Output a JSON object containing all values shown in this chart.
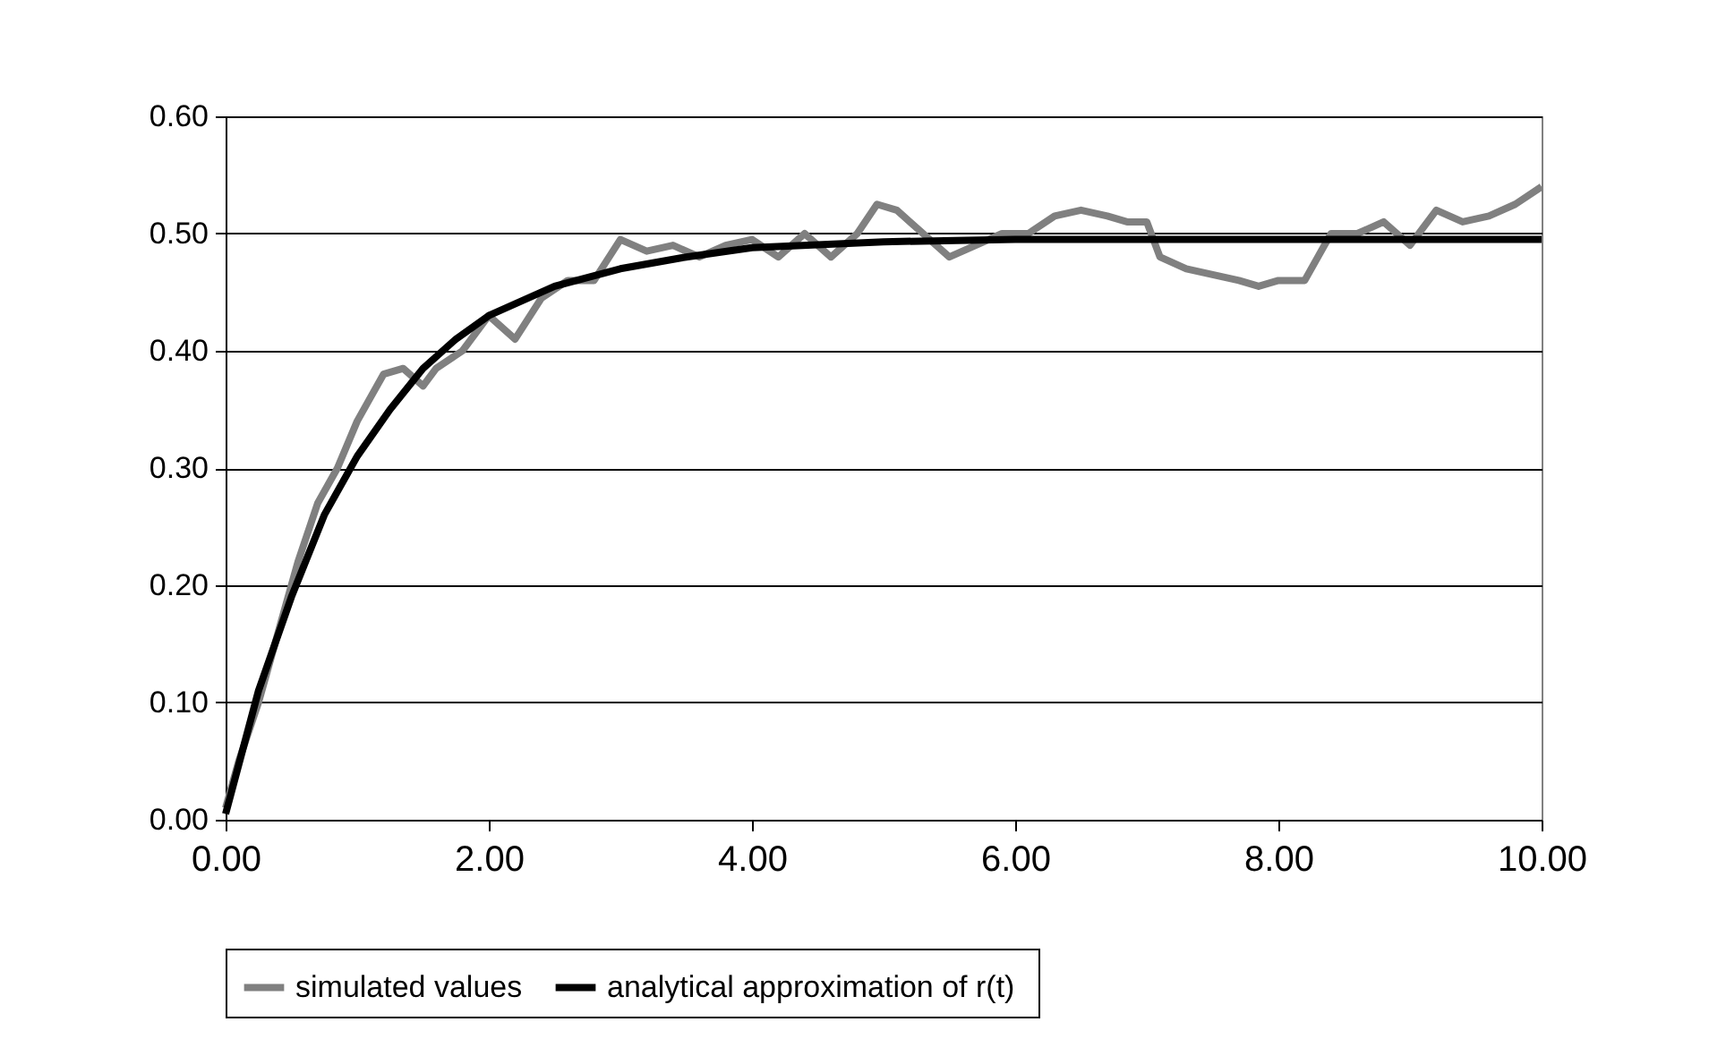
{
  "chart_data": {
    "type": "line",
    "series": [
      {
        "name": "simulated values",
        "color": "#808080",
        "x": [
          0,
          0.1,
          0.25,
          0.4,
          0.55,
          0.7,
          0.85,
          1.0,
          1.1,
          1.2,
          1.35,
          1.5,
          1.6,
          1.8,
          2.0,
          2.2,
          2.4,
          2.6,
          2.8,
          3.0,
          3.2,
          3.4,
          3.6,
          3.8,
          4.0,
          4.2,
          4.4,
          4.6,
          4.8,
          4.95,
          5.1,
          5.3,
          5.5,
          5.7,
          5.9,
          6.1,
          6.3,
          6.5,
          6.7,
          6.85,
          7.0,
          7.1,
          7.3,
          7.5,
          7.7,
          7.85,
          8.0,
          8.2,
          8.4,
          8.6,
          8.8,
          9.0,
          9.2,
          9.4,
          9.6,
          9.8,
          10.0
        ],
        "values": [
          0.01,
          0.05,
          0.1,
          0.16,
          0.22,
          0.27,
          0.3,
          0.34,
          0.36,
          0.38,
          0.385,
          0.37,
          0.385,
          0.4,
          0.43,
          0.41,
          0.445,
          0.46,
          0.46,
          0.495,
          0.485,
          0.49,
          0.48,
          0.49,
          0.495,
          0.48,
          0.5,
          0.48,
          0.5,
          0.525,
          0.52,
          0.5,
          0.48,
          0.49,
          0.5,
          0.5,
          0.515,
          0.52,
          0.515,
          0.51,
          0.51,
          0.48,
          0.47,
          0.465,
          0.46,
          0.455,
          0.46,
          0.46,
          0.5,
          0.5,
          0.51,
          0.49,
          0.52,
          0.51,
          0.515,
          0.525,
          0.54
        ]
      },
      {
        "name": "analytical approximation of  r(t)",
        "color": "#000000",
        "x": [
          0,
          0.25,
          0.5,
          0.75,
          1.0,
          1.25,
          1.5,
          1.75,
          2.0,
          2.5,
          3.0,
          3.5,
          4.0,
          5.0,
          6.0,
          8.0,
          10.0
        ],
        "values": [
          0.005,
          0.11,
          0.19,
          0.26,
          0.31,
          0.35,
          0.385,
          0.41,
          0.43,
          0.455,
          0.47,
          0.48,
          0.488,
          0.493,
          0.495,
          0.495,
          0.495
        ]
      }
    ],
    "xlim": [
      0,
      10
    ],
    "xticks": [
      {
        "value": 0,
        "label": "0.00"
      },
      {
        "value": 2,
        "label": "2.00"
      },
      {
        "value": 4,
        "label": "4.00"
      },
      {
        "value": 6,
        "label": "6.00"
      },
      {
        "value": 8,
        "label": "8.00"
      },
      {
        "value": 10,
        "label": "10.00"
      }
    ],
    "ylim": [
      0,
      0.6
    ],
    "yticks": [
      {
        "value": 0,
        "label": "0.00"
      },
      {
        "value": 0.1,
        "label": "0.10"
      },
      {
        "value": 0.2,
        "label": "0.20"
      },
      {
        "value": 0.3,
        "label": "0.30"
      },
      {
        "value": 0.4,
        "label": "0.40"
      },
      {
        "value": 0.5,
        "label": "0.50"
      },
      {
        "value": 0.6,
        "label": "0.60"
      }
    ],
    "grid": "y",
    "legend": "bottom",
    "marker": "none",
    "line_style": "solid"
  }
}
